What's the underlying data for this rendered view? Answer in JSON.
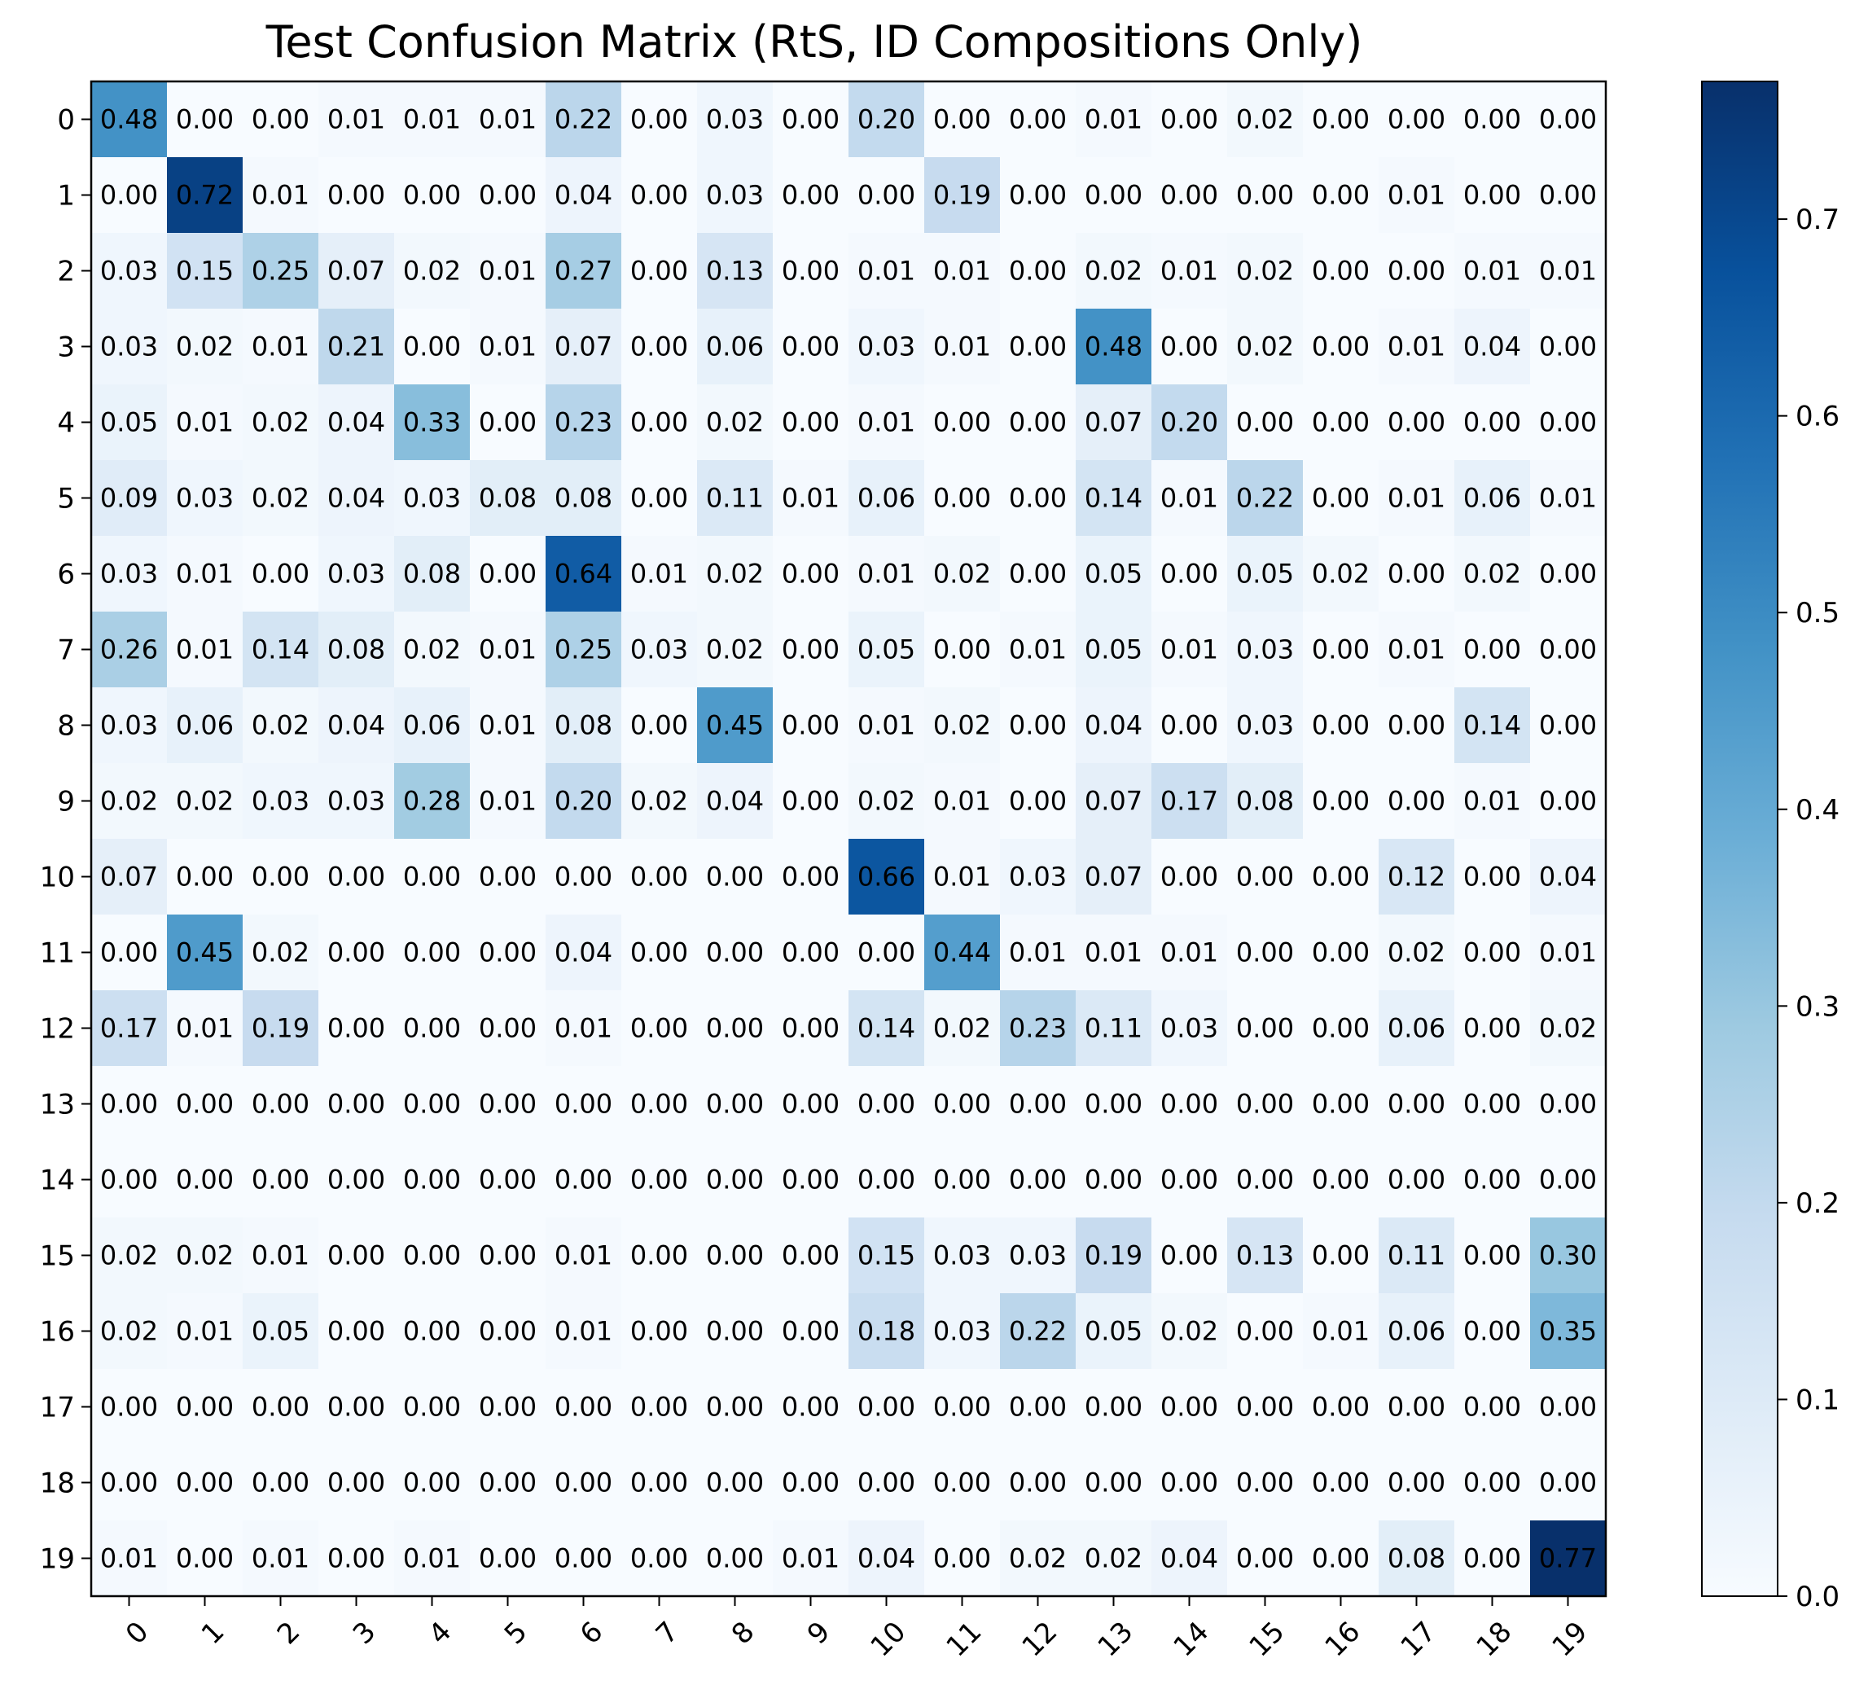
{
  "chart_data": {
    "type": "heatmap",
    "title": "Test Confusion Matrix (RtS, ID Compositions Only)",
    "xlabel": "",
    "ylabel": "",
    "colormap": "Blues",
    "x_categories": [
      "0",
      "1",
      "2",
      "3",
      "4",
      "5",
      "6",
      "7",
      "8",
      "9",
      "10",
      "11",
      "12",
      "13",
      "14",
      "15",
      "16",
      "17",
      "18",
      "19"
    ],
    "y_categories": [
      "0",
      "1",
      "2",
      "3",
      "4",
      "5",
      "6",
      "7",
      "8",
      "9",
      "10",
      "11",
      "12",
      "13",
      "14",
      "15",
      "16",
      "17",
      "18",
      "19"
    ],
    "values": [
      [
        0.48,
        0.0,
        0.0,
        0.01,
        0.01,
        0.01,
        0.22,
        0.0,
        0.03,
        0.0,
        0.2,
        0.0,
        0.0,
        0.01,
        0.0,
        0.02,
        0.0,
        0.0,
        0.0,
        0.0
      ],
      [
        0.0,
        0.72,
        0.01,
        0.0,
        0.0,
        0.0,
        0.04,
        0.0,
        0.03,
        0.0,
        0.0,
        0.19,
        0.0,
        0.0,
        0.0,
        0.0,
        0.0,
        0.01,
        0.0,
        0.0
      ],
      [
        0.03,
        0.15,
        0.25,
        0.07,
        0.02,
        0.01,
        0.27,
        0.0,
        0.13,
        0.0,
        0.01,
        0.01,
        0.0,
        0.02,
        0.01,
        0.02,
        0.0,
        0.0,
        0.01,
        0.01
      ],
      [
        0.03,
        0.02,
        0.01,
        0.21,
        0.0,
        0.01,
        0.07,
        0.0,
        0.06,
        0.0,
        0.03,
        0.01,
        0.0,
        0.48,
        0.0,
        0.02,
        0.0,
        0.01,
        0.04,
        0.0
      ],
      [
        0.05,
        0.01,
        0.02,
        0.04,
        0.33,
        0.0,
        0.23,
        0.0,
        0.02,
        0.0,
        0.01,
        0.0,
        0.0,
        0.07,
        0.2,
        0.0,
        0.0,
        0.0,
        0.0,
        0.0
      ],
      [
        0.09,
        0.03,
        0.02,
        0.04,
        0.03,
        0.08,
        0.08,
        0.0,
        0.11,
        0.01,
        0.06,
        0.0,
        0.0,
        0.14,
        0.01,
        0.22,
        0.0,
        0.01,
        0.06,
        0.01
      ],
      [
        0.03,
        0.01,
        0.0,
        0.03,
        0.08,
        0.0,
        0.64,
        0.01,
        0.02,
        0.0,
        0.01,
        0.02,
        0.0,
        0.05,
        0.0,
        0.05,
        0.02,
        0.0,
        0.02,
        0.0
      ],
      [
        0.26,
        0.01,
        0.14,
        0.08,
        0.02,
        0.01,
        0.25,
        0.03,
        0.02,
        0.0,
        0.05,
        0.0,
        0.01,
        0.05,
        0.01,
        0.03,
        0.0,
        0.01,
        0.0,
        0.0
      ],
      [
        0.03,
        0.06,
        0.02,
        0.04,
        0.06,
        0.01,
        0.08,
        0.0,
        0.45,
        0.0,
        0.01,
        0.02,
        0.0,
        0.04,
        0.0,
        0.03,
        0.0,
        0.0,
        0.14,
        0.0
      ],
      [
        0.02,
        0.02,
        0.03,
        0.03,
        0.28,
        0.01,
        0.2,
        0.02,
        0.04,
        0.0,
        0.02,
        0.01,
        0.0,
        0.07,
        0.17,
        0.08,
        0.0,
        0.0,
        0.01,
        0.0
      ],
      [
        0.07,
        0.0,
        0.0,
        0.0,
        0.0,
        0.0,
        0.0,
        0.0,
        0.0,
        0.0,
        0.66,
        0.01,
        0.03,
        0.07,
        0.0,
        0.0,
        0.0,
        0.12,
        0.0,
        0.04
      ],
      [
        0.0,
        0.45,
        0.02,
        0.0,
        0.0,
        0.0,
        0.04,
        0.0,
        0.0,
        0.0,
        0.0,
        0.44,
        0.01,
        0.01,
        0.01,
        0.0,
        0.0,
        0.02,
        0.0,
        0.01
      ],
      [
        0.17,
        0.01,
        0.19,
        0.0,
        0.0,
        0.0,
        0.01,
        0.0,
        0.0,
        0.0,
        0.14,
        0.02,
        0.23,
        0.11,
        0.03,
        0.0,
        0.0,
        0.06,
        0.0,
        0.02
      ],
      [
        0.0,
        0.0,
        0.0,
        0.0,
        0.0,
        0.0,
        0.0,
        0.0,
        0.0,
        0.0,
        0.0,
        0.0,
        0.0,
        0.0,
        0.0,
        0.0,
        0.0,
        0.0,
        0.0,
        0.0
      ],
      [
        0.0,
        0.0,
        0.0,
        0.0,
        0.0,
        0.0,
        0.0,
        0.0,
        0.0,
        0.0,
        0.0,
        0.0,
        0.0,
        0.0,
        0.0,
        0.0,
        0.0,
        0.0,
        0.0,
        0.0
      ],
      [
        0.02,
        0.02,
        0.01,
        0.0,
        0.0,
        0.0,
        0.01,
        0.0,
        0.0,
        0.0,
        0.15,
        0.03,
        0.03,
        0.19,
        0.0,
        0.13,
        0.0,
        0.11,
        0.0,
        0.3
      ],
      [
        0.02,
        0.01,
        0.05,
        0.0,
        0.0,
        0.0,
        0.01,
        0.0,
        0.0,
        0.0,
        0.18,
        0.03,
        0.22,
        0.05,
        0.02,
        0.0,
        0.01,
        0.06,
        0.0,
        0.35
      ],
      [
        0.0,
        0.0,
        0.0,
        0.0,
        0.0,
        0.0,
        0.0,
        0.0,
        0.0,
        0.0,
        0.0,
        0.0,
        0.0,
        0.0,
        0.0,
        0.0,
        0.0,
        0.0,
        0.0,
        0.0
      ],
      [
        0.0,
        0.0,
        0.0,
        0.0,
        0.0,
        0.0,
        0.0,
        0.0,
        0.0,
        0.0,
        0.0,
        0.0,
        0.0,
        0.0,
        0.0,
        0.0,
        0.0,
        0.0,
        0.0,
        0.0
      ],
      [
        0.01,
        0.0,
        0.01,
        0.0,
        0.01,
        0.0,
        0.0,
        0.0,
        0.0,
        0.01,
        0.04,
        0.0,
        0.02,
        0.02,
        0.04,
        0.0,
        0.0,
        0.08,
        0.0,
        0.77
      ]
    ],
    "value_format_decimals": 2,
    "colorbar": {
      "range": [
        0.0,
        0.77
      ],
      "ticks": [
        0.0,
        0.1,
        0.2,
        0.3,
        0.4,
        0.5,
        0.6,
        0.7
      ],
      "tick_labels": [
        "0.0",
        "0.1",
        "0.2",
        "0.3",
        "0.4",
        "0.5",
        "0.6",
        "0.7"
      ]
    },
    "x_tick_rotation": 45,
    "grid": false
  }
}
